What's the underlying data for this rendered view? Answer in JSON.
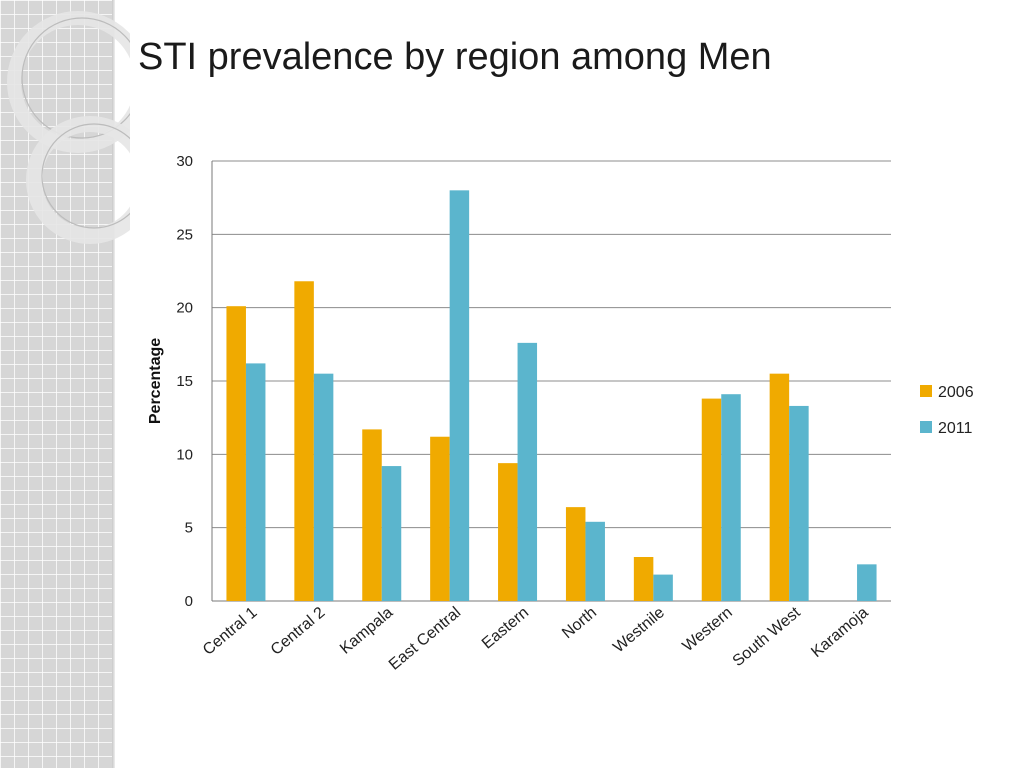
{
  "slide": {
    "title": "STI prevalence by region among Men"
  },
  "chart_data": {
    "type": "bar",
    "title": "",
    "xlabel": "",
    "ylabel": "Percentage",
    "ylim": [
      0,
      30
    ],
    "yticks": [
      0,
      5,
      10,
      15,
      20,
      25,
      30
    ],
    "grid": true,
    "legend_position": "right",
    "categories": [
      "Central 1",
      "Central 2",
      "Kampala",
      "East Central",
      "Eastern",
      "North",
      "Westnile",
      "Western",
      "South West",
      "Karamoja"
    ],
    "series": [
      {
        "name": "2006",
        "color": "#f0aa00",
        "values": [
          20.1,
          21.8,
          11.7,
          11.2,
          9.4,
          6.4,
          3.0,
          13.8,
          15.5,
          0
        ]
      },
      {
        "name": "2011",
        "color": "#5bb5cd",
        "values": [
          16.2,
          15.5,
          9.2,
          28.0,
          17.6,
          5.4,
          1.8,
          14.1,
          13.3,
          2.5
        ]
      }
    ]
  }
}
